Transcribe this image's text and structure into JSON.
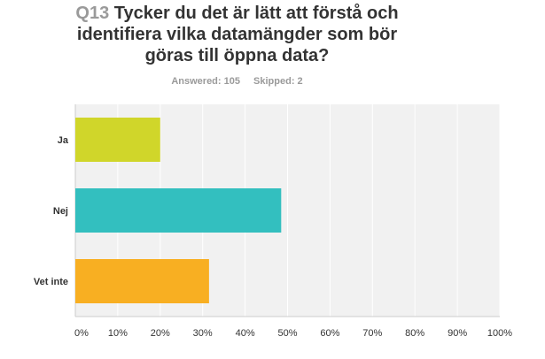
{
  "header": {
    "question_number": "Q13",
    "question_text": "Tycker du det är lätt att förstå och identifiera vilka datamängder som bör göras till öppna data?"
  },
  "stats": {
    "answered": "Answered: 105",
    "skipped": "Skipped: 2"
  },
  "chart_data": {
    "type": "bar",
    "orientation": "horizontal",
    "categories": [
      "Ja",
      "Nej",
      "Vet inte"
    ],
    "values": [
      20,
      48.5,
      31.5
    ],
    "colors": [
      "#d0d62a",
      "#33bfbf",
      "#f8af22"
    ],
    "xlim": [
      0,
      100
    ],
    "x_ticks": [
      "0%",
      "10%",
      "20%",
      "30%",
      "40%",
      "50%",
      "60%",
      "70%",
      "80%",
      "90%",
      "100%"
    ],
    "grid": true,
    "plot_background": "#f1f1f1"
  }
}
